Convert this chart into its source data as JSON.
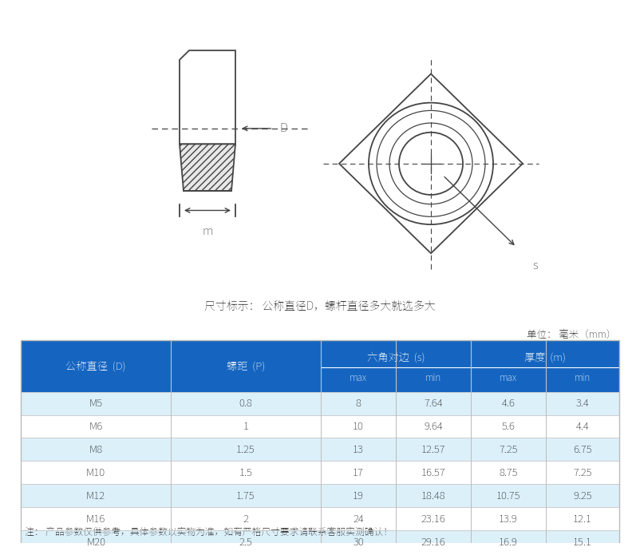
{
  "title_note": "尺寸标示： 公称直径D，螺杆直径多大就选多大",
  "unit_text": "单位： 毫米（mm）",
  "note_text": "注： 产品参数仅供参考，具体参数以实物为准，如有严格尺寸要求请联系客服实测确认！",
  "header_bg": "#1565C0",
  "row_odd_bg": "#FFFFFF",
  "row_even_bg": "#DCF0FA",
  "col_header1": [
    "公称直径  （D）",
    "螺距  （P）",
    "六角对边（s）",
    "厚度（m）"
  ],
  "rows": [
    [
      "M5",
      "0.8",
      "8",
      "7.64",
      "4.6",
      "3.4"
    ],
    [
      "M6",
      "1",
      "10",
      "9.64",
      "5.6",
      "4.4"
    ],
    [
      "M8",
      "1.25",
      "13",
      "12.57",
      "7.25",
      "6.75"
    ],
    [
      "M10",
      "1.5",
      "17",
      "16.57",
      "8.75",
      "7.25"
    ],
    [
      "M12",
      "1.75",
      "19",
      "18.48",
      "10.75",
      "9.25"
    ],
    [
      "M16",
      "2",
      "24",
      "23.16",
      "13.9",
      "12.1"
    ],
    [
      "M20",
      "2.5",
      "30",
      "29.16",
      "16.9",
      "15.1"
    ]
  ],
  "bg_color": "#FFFFFF",
  "lc": "#444444",
  "lc_thin": "#666666"
}
